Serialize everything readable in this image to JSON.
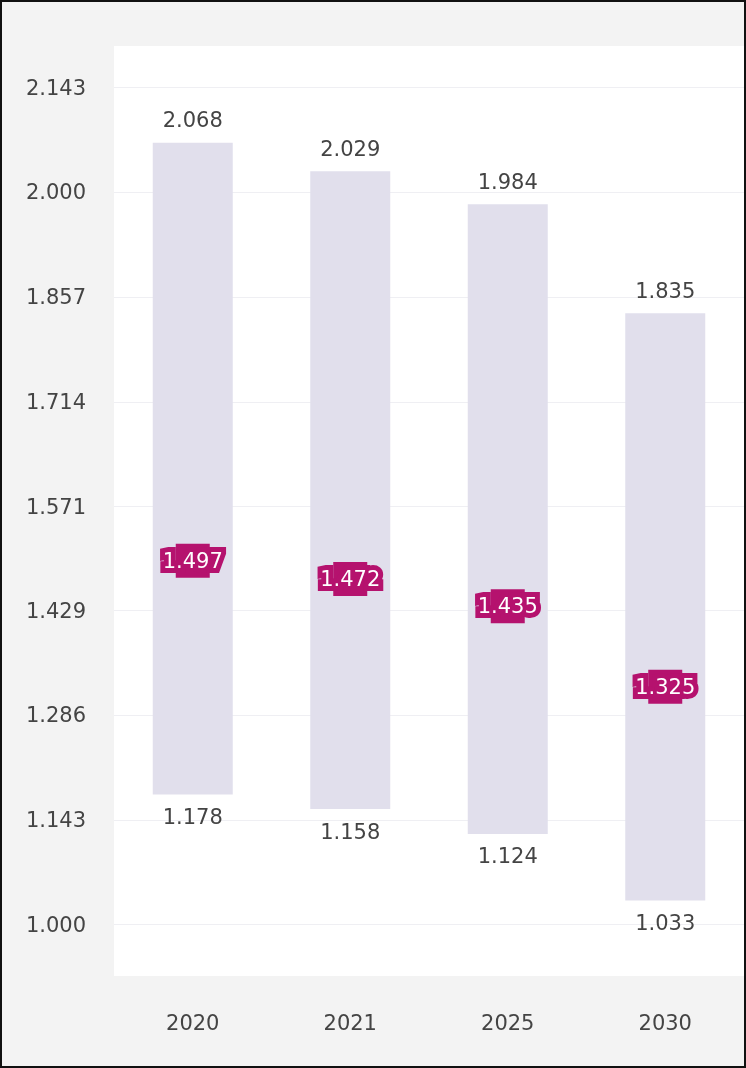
{
  "chart_data": {
    "type": "bar",
    "categories": [
      "2020",
      "2021",
      "2025",
      "2030"
    ],
    "series": [
      {
        "color": "#e1dfec",
        "base": [
          1.178,
          1.158,
          1.124,
          1.033
        ],
        "values": [
          0.89,
          0.871,
          0.86,
          0.802
        ]
      },
      {
        "type": "scatter",
        "color": "#b5126e",
        "marker": "square",
        "values": [
          1.497,
          1.472,
          1.435,
          1.325
        ],
        "value_labels": [
          "1.497",
          "1.472",
          "1.435",
          "1.325"
        ]
      }
    ],
    "annotations": [
      {
        "text": "2.068",
        "x": "2020",
        "y": 2.068
      },
      {
        "text": "2.029",
        "x": "2021",
        "y": 2.029
      },
      {
        "text": "1.984",
        "x": "2025",
        "y": 1.984
      },
      {
        "text": "1.835",
        "x": "2030",
        "y": 1.835
      },
      {
        "text": "1.178",
        "x": "2020",
        "y": 1.178
      },
      {
        "text": "1.158",
        "x": "2021",
        "y": 1.158
      },
      {
        "text": "1.124",
        "x": "2025",
        "y": 1.124
      },
      {
        "text": "1.033",
        "x": "2030",
        "y": 1.033
      }
    ],
    "ylim": [
      0.93,
      2.2
    ],
    "yticks": [
      {
        "value": 1,
        "label": "1.000"
      },
      {
        "value": 1.143,
        "label": "1.143"
      },
      {
        "value": 1.286,
        "label": "1.286"
      },
      {
        "value": 1.429,
        "label": "1.429"
      },
      {
        "value": 1.571,
        "label": "1.571"
      },
      {
        "value": 1.714,
        "label": "1.714"
      },
      {
        "value": 1.857,
        "label": "1.857"
      },
      {
        "value": 2,
        "label": "2.000"
      },
      {
        "value": 2.143,
        "label": "2.143"
      }
    ],
    "grid": "y"
  }
}
